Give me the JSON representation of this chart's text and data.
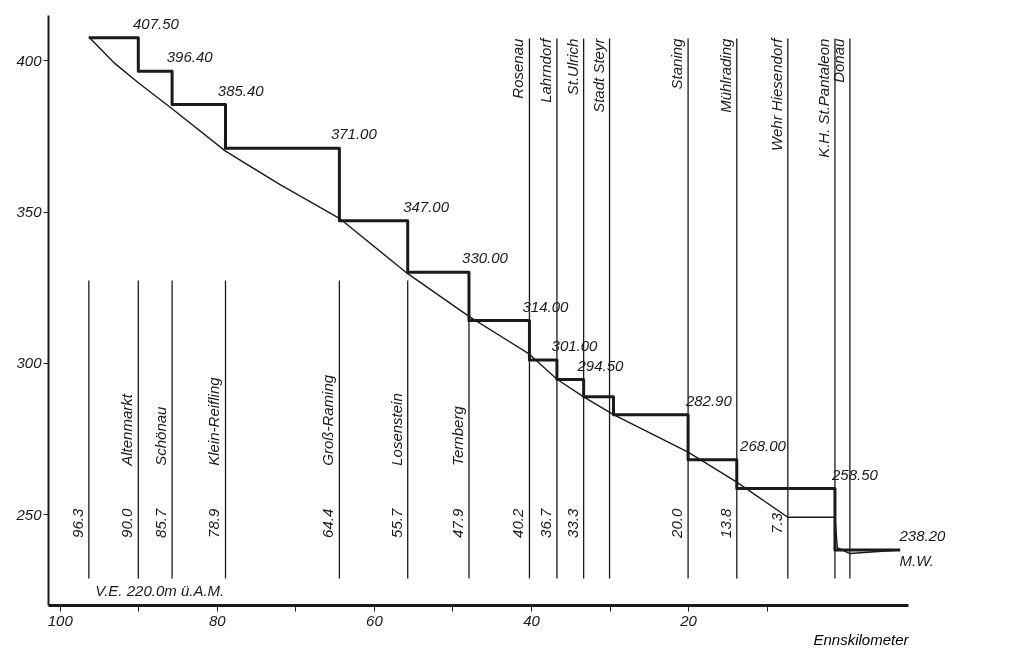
{
  "chart_data": {
    "type": "line",
    "xlabel": "Ennskilometer",
    "xlim": [
      101.5,
      -8
    ],
    "ylim": [
      220,
      415
    ],
    "xticks": [
      100,
      {
        "value": 90,
        "label": null
      },
      80,
      {
        "value": 70,
        "label": null
      },
      60,
      {
        "value": 50,
        "label": null
      },
      40,
      {
        "value": 30,
        "label": null
      },
      20,
      {
        "value": 10,
        "label": null
      }
    ],
    "yticks": [
      250,
      300,
      350,
      400
    ],
    "grid": false,
    "marker": "none",
    "series": [
      {
        "type": "line",
        "color": "#1a1a1a",
        "x": [
          96.3,
          93,
          90.0,
          85.7,
          78.9,
          72,
          64.4,
          55.7,
          47.9,
          40.2,
          36.7,
          33.3,
          29.5,
          20.0,
          13.8,
          7.3,
          1.3,
          1.0,
          -0.6,
          -7
        ],
        "values": [
          407.7,
          399,
          392.6,
          384,
          370,
          359,
          347.8,
          329.5,
          315.4,
          302.9,
          294.6,
          288.8,
          282.9,
          270.5,
          260.6,
          249,
          249,
          239,
          237,
          238.2
        ]
      },
      {
        "type": "step",
        "color": "#1a1a1a",
        "x": [
          96.3,
          90.0,
          85.7,
          78.9,
          64.4,
          55.7,
          47.9,
          40.2,
          36.7,
          33.3,
          29.5,
          20.0,
          13.8,
          1.3,
          -7
        ],
        "values": [
          407.5,
          396.4,
          385.4,
          371.0,
          347.0,
          330.0,
          314.0,
          301.0,
          294.5,
          288.8,
          282.9,
          268.0,
          258.5,
          238.2,
          238.2
        ]
      }
    ],
    "ref_lines": [
      {
        "axis": "x",
        "value": 96.3
      },
      {
        "axis": "x",
        "value": 90.0,
        "label": "Altenmarkt"
      },
      {
        "axis": "x",
        "value": 85.7,
        "label": "Schönau"
      },
      {
        "axis": "x",
        "value": 78.9,
        "label": "Klein-Reifling"
      },
      {
        "axis": "x",
        "value": 64.4,
        "label": "Groß-Raming"
      },
      {
        "axis": "x",
        "value": 55.7,
        "label": "Losenstein"
      },
      {
        "axis": "x",
        "value": 47.9,
        "label": "Ternberg"
      },
      {
        "axis": "x",
        "value": 40.2,
        "label": "Rosenau"
      },
      {
        "axis": "x",
        "value": 36.7,
        "label": "Lahrndorf"
      },
      {
        "axis": "x",
        "value": 33.3,
        "label": "St.Ulrich"
      },
      {
        "axis": "x",
        "value": 30.0,
        "label": "Stadt Steyr"
      },
      {
        "axis": "x",
        "value": 20.0,
        "label": "Staning"
      },
      {
        "axis": "x",
        "value": 13.8,
        "label": "Mühlrading"
      },
      {
        "axis": "x",
        "value": 7.3,
        "label": "Wehr Hiesendorf"
      },
      {
        "axis": "x",
        "value": 1.3,
        "label": "K.H. St.Pantaleon"
      },
      {
        "axis": "x",
        "value": -0.6,
        "label": "Donau"
      }
    ],
    "annotations": [
      "V.E. 220.0m ü.A.M.",
      {
        "text": "407.50",
        "x": 91.7,
        "y": 407.5
      },
      {
        "text": "396.40",
        "x": 87.4,
        "y": 396.4
      },
      {
        "text": "385.40",
        "x": 80.9,
        "y": 385.4
      },
      {
        "text": "371.00",
        "x": 66.5,
        "y": 371.0
      },
      {
        "text": "347.00",
        "x": 57.3,
        "y": 347.0
      },
      {
        "text": "330.00",
        "x": 49.8,
        "y": 330.0
      },
      {
        "text": "314.00",
        "x": 42.1,
        "y": 314.0
      },
      {
        "text": "301.00",
        "x": 38.4,
        "y": 301.0
      },
      {
        "text": "294.50",
        "x": 35.1,
        "y": 294.5
      },
      {
        "text": "282.90",
        "x": 21.3,
        "y": 282.9
      },
      {
        "text": "268.00",
        "x": 14.4,
        "y": 268.0
      },
      {
        "text": "258.50",
        "x": 2.7,
        "y": 258.5
      },
      {
        "text": "238.20",
        "x": -5.9,
        "y": 238.2
      },
      "M.W.",
      {
        "text": "96.3",
        "x": 96.3,
        "y": 247
      },
      {
        "text": "90.0",
        "x": 90.0,
        "y": 247
      },
      {
        "text": "85.7",
        "x": 85.7,
        "y": 247
      },
      {
        "text": "78.9",
        "x": 78.9,
        "y": 247
      },
      {
        "text": "64.4",
        "x": 64.4,
        "y": 247
      },
      {
        "text": "55.7",
        "x": 55.7,
        "y": 247
      },
      {
        "text": "47.9",
        "x": 47.9,
        "y": 247
      },
      {
        "text": "40.2",
        "x": 40.2,
        "y": 247
      },
      {
        "text": "36.7",
        "x": 36.7,
        "y": 247
      },
      {
        "text": "33.3",
        "x": 33.3,
        "y": 247
      },
      {
        "text": "20.0",
        "x": 20.0,
        "y": 247
      },
      {
        "text": "13.8",
        "x": 13.8,
        "y": 247
      },
      {
        "text": "7.3",
        "x": 7.3,
        "y": 247
      }
    ]
  }
}
